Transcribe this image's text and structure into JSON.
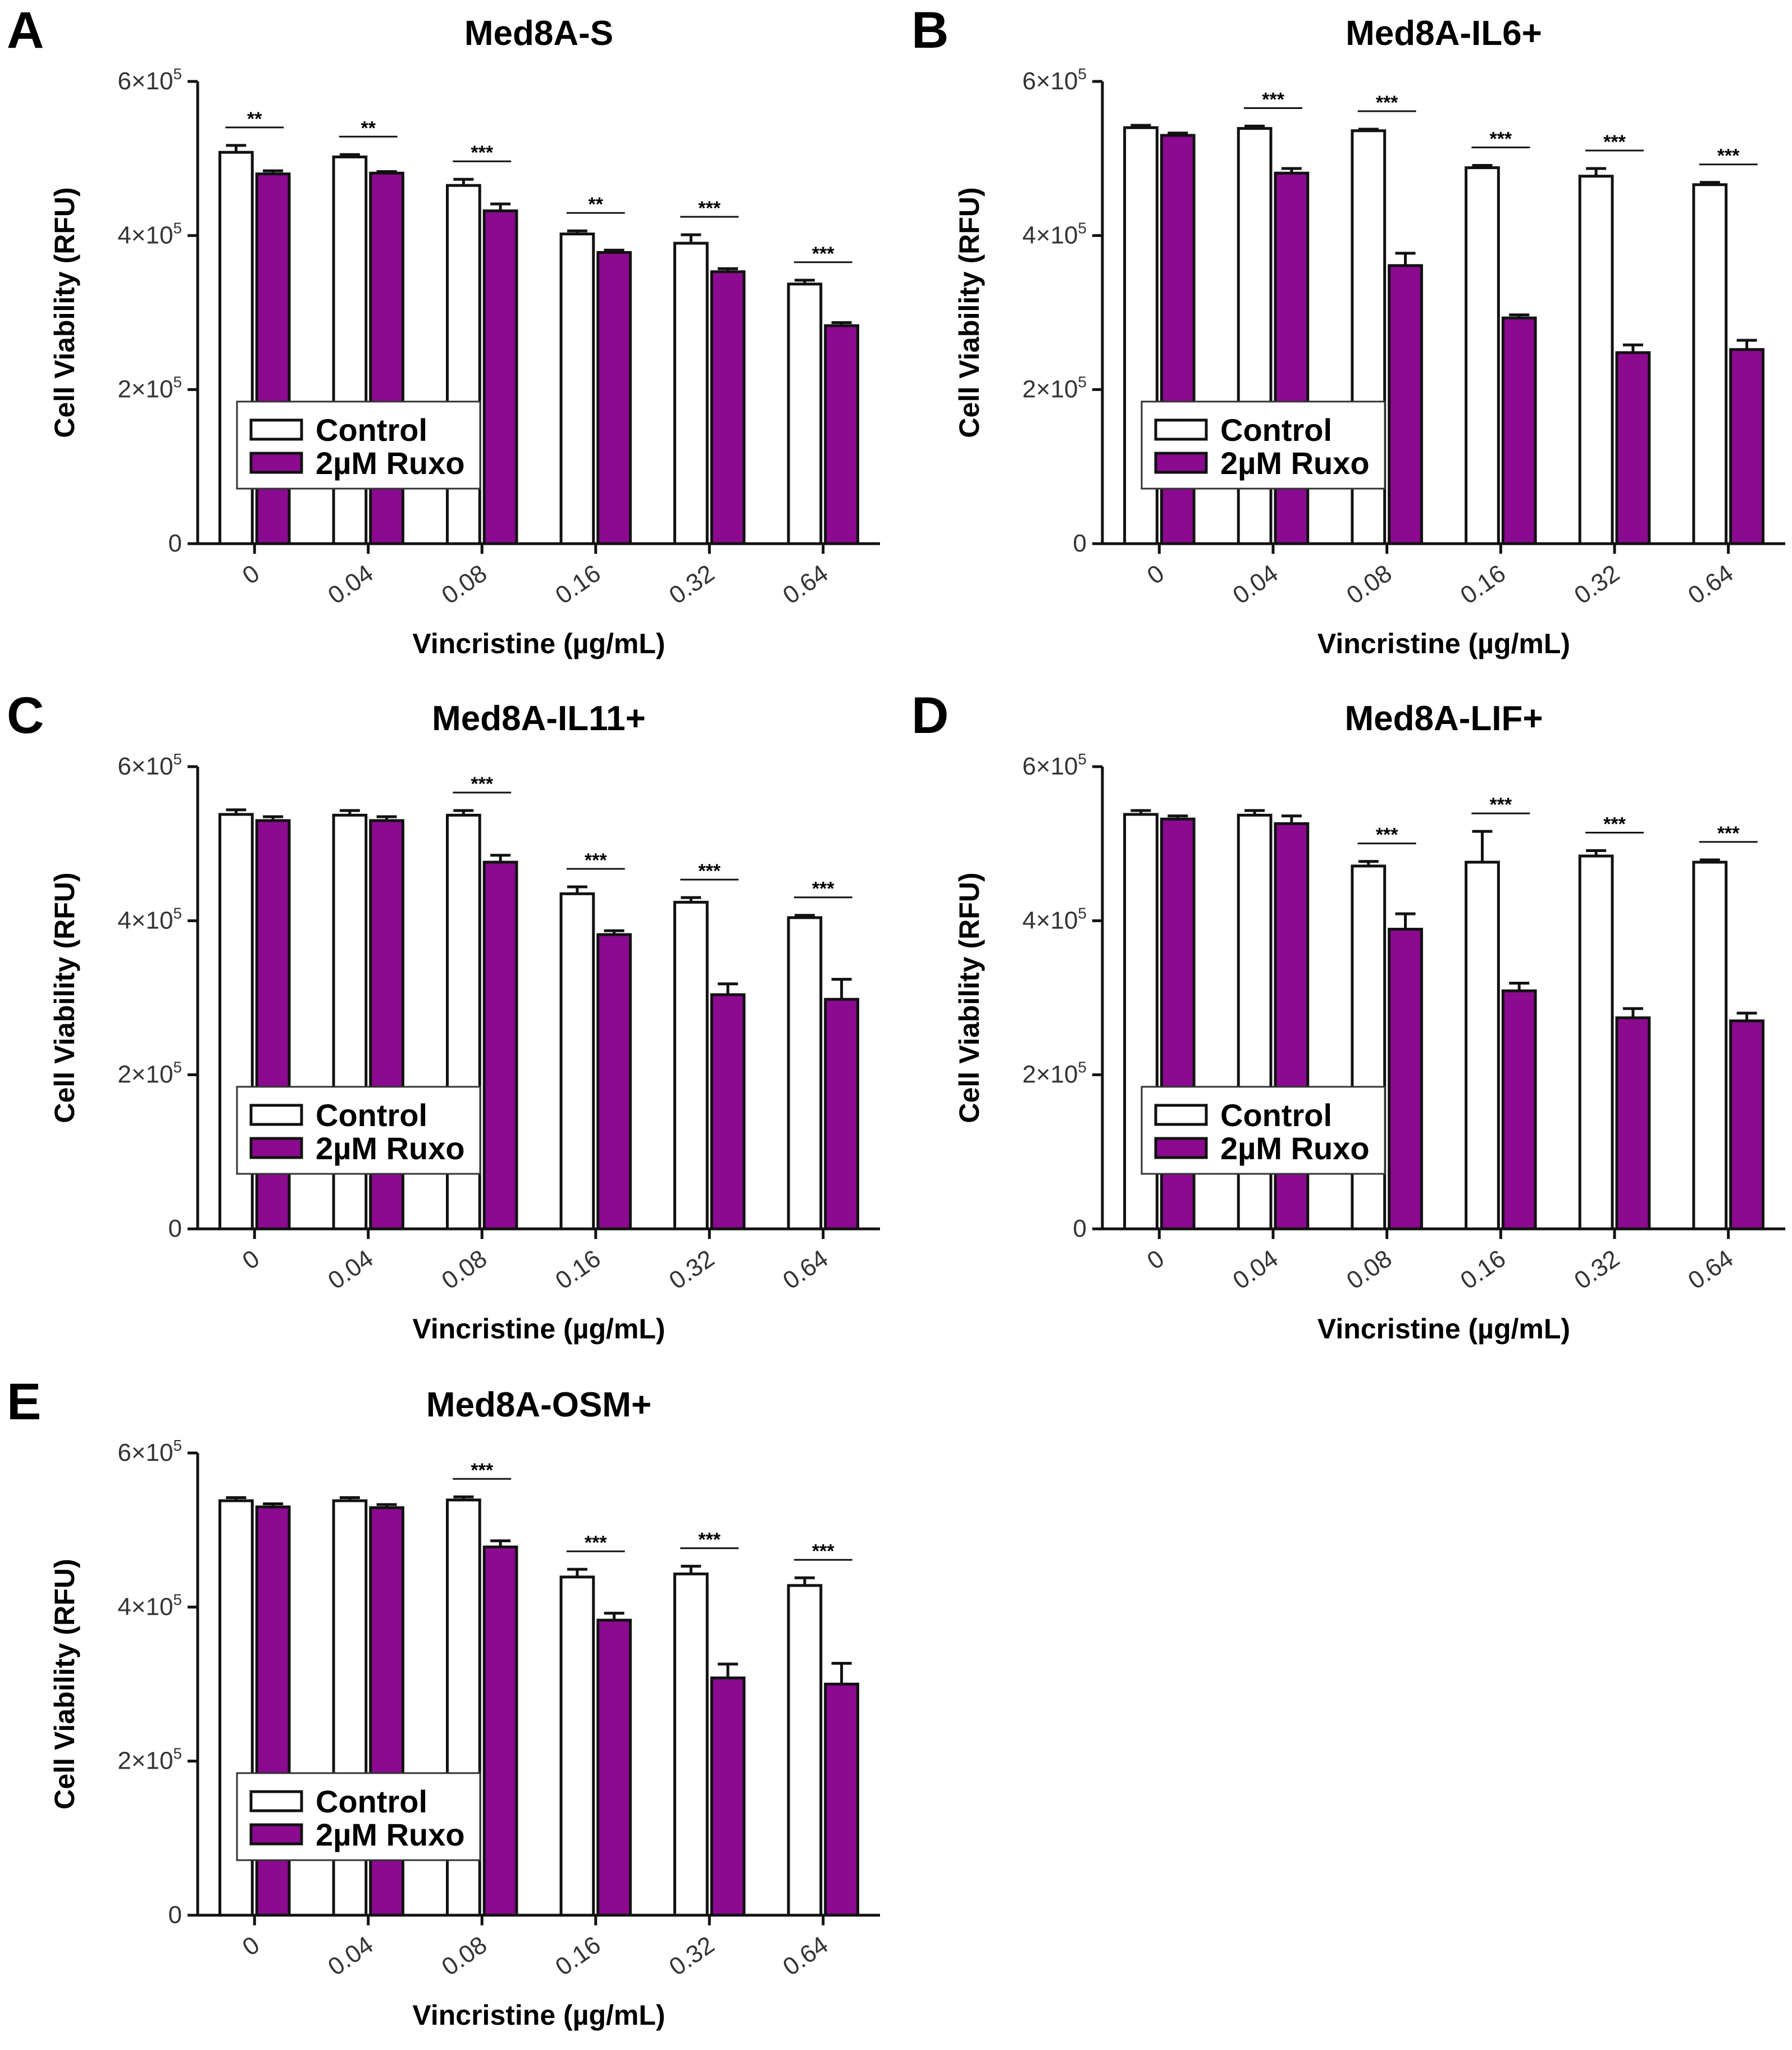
{
  "figure": {
    "legend": {
      "control_label": "Control",
      "ruxo_label": "2µM Ruxo"
    },
    "colors": {
      "control_fill": "#ffffff",
      "ruxo_fill": "#8b0a8f",
      "axis": "#111111"
    }
  },
  "chart_data": [
    {
      "panel": "A",
      "type": "bar",
      "title": "Med8A-S",
      "xlabel": "Vincristine (µg/mL)",
      "ylabel": "Cell Viability (RFU)",
      "ylim": [
        0,
        600000
      ],
      "yticks": [
        {
          "value": 0,
          "mantissa": "0",
          "exp": ""
        },
        {
          "value": 200000,
          "mantissa": "2×10",
          "exp": "5"
        },
        {
          "value": 400000,
          "mantissa": "4×10",
          "exp": "5"
        },
        {
          "value": 600000,
          "mantissa": "6×10",
          "exp": "5"
        }
      ],
      "categories": [
        "0",
        "0.04",
        "0.08",
        "0.16",
        "0.32",
        "0.64"
      ],
      "series": [
        {
          "name": "Control",
          "values": [
            508000,
            502000,
            465000,
            402000,
            390000,
            337000
          ],
          "errors": [
            9000,
            3000,
            8000,
            4000,
            11000,
            5000
          ]
        },
        {
          "name": "2µM Ruxo",
          "values": [
            480000,
            481000,
            432000,
            378000,
            353000,
            283000
          ],
          "errors": [
            4000,
            2000,
            9000,
            3000,
            4000,
            4000
          ]
        }
      ],
      "significance": [
        "**",
        "**",
        "***",
        "**",
        "***",
        "***"
      ],
      "legend_position": "bottom-left"
    },
    {
      "panel": "B",
      "type": "bar",
      "title": "Med8A-IL6+",
      "xlabel": "Vincristine (µg/mL)",
      "ylabel": "Cell Viability (RFU)",
      "ylim": [
        0,
        600000
      ],
      "yticks": [
        {
          "value": 0,
          "mantissa": "0",
          "exp": ""
        },
        {
          "value": 200000,
          "mantissa": "2×10",
          "exp": "5"
        },
        {
          "value": 400000,
          "mantissa": "4×10",
          "exp": "5"
        },
        {
          "value": 600000,
          "mantissa": "6×10",
          "exp": "5"
        }
      ],
      "categories": [
        "0",
        "0.04",
        "0.08",
        "0.16",
        "0.32",
        "0.64"
      ],
      "series": [
        {
          "name": "Control",
          "values": [
            540000,
            539000,
            536000,
            488000,
            477000,
            466000
          ],
          "errors": [
            3000,
            3000,
            2000,
            3000,
            10000,
            3000
          ]
        },
        {
          "name": "2µM Ruxo",
          "values": [
            530000,
            481000,
            361000,
            293000,
            248000,
            252000
          ],
          "errors": [
            3000,
            6000,
            16000,
            4000,
            10000,
            12000
          ]
        }
      ],
      "significance": [
        "",
        "***",
        "***",
        "***",
        "***",
        "***"
      ],
      "legend_position": "bottom-left"
    },
    {
      "panel": "C",
      "type": "bar",
      "title": "Med8A-IL11+",
      "xlabel": "Vincristine (µg/mL)",
      "ylabel": "Cell Viability (RFU)",
      "ylim": [
        0,
        600000
      ],
      "yticks": [
        {
          "value": 0,
          "mantissa": "0",
          "exp": ""
        },
        {
          "value": 200000,
          "mantissa": "2×10",
          "exp": "5"
        },
        {
          "value": 400000,
          "mantissa": "4×10",
          "exp": "5"
        },
        {
          "value": 600000,
          "mantissa": "6×10",
          "exp": "5"
        }
      ],
      "categories": [
        "0",
        "0.04",
        "0.08",
        "0.16",
        "0.32",
        "0.64"
      ],
      "series": [
        {
          "name": "Control",
          "values": [
            538000,
            537000,
            537000,
            435000,
            424000,
            404000
          ],
          "errors": [
            6000,
            6000,
            6000,
            9000,
            6000,
            3000
          ]
        },
        {
          "name": "2µM Ruxo",
          "values": [
            530000,
            530000,
            476000,
            382000,
            304000,
            298000
          ],
          "errors": [
            5000,
            5000,
            9000,
            5000,
            14000,
            26000
          ]
        }
      ],
      "significance": [
        "",
        "",
        "***",
        "***",
        "***",
        "***"
      ],
      "legend_position": "bottom-left"
    },
    {
      "panel": "D",
      "type": "bar",
      "title": "Med8A-LIF+",
      "xlabel": "Vincristine (µg/mL)",
      "ylabel": "Cell Viability (RFU)",
      "ylim": [
        0,
        600000
      ],
      "yticks": [
        {
          "value": 0,
          "mantissa": "0",
          "exp": ""
        },
        {
          "value": 200000,
          "mantissa": "2×10",
          "exp": "5"
        },
        {
          "value": 400000,
          "mantissa": "4×10",
          "exp": "5"
        },
        {
          "value": 600000,
          "mantissa": "6×10",
          "exp": "5"
        }
      ],
      "categories": [
        "0",
        "0.04",
        "0.08",
        "0.16",
        "0.32",
        "0.64"
      ],
      "series": [
        {
          "name": "Control",
          "values": [
            538000,
            537000,
            471000,
            476000,
            484000,
            476000
          ],
          "errors": [
            5000,
            6000,
            6000,
            40000,
            7000,
            3000
          ]
        },
        {
          "name": "2µM Ruxo",
          "values": [
            532000,
            526000,
            389000,
            309000,
            274000,
            270000
          ],
          "errors": [
            4000,
            10000,
            20000,
            10000,
            12000,
            10000
          ]
        }
      ],
      "significance": [
        "",
        "",
        "***",
        "***",
        "***",
        "***"
      ],
      "legend_position": "bottom-left"
    },
    {
      "panel": "E",
      "type": "bar",
      "title": "Med8A-OSM+",
      "xlabel": "Vincristine (µg/mL)",
      "ylabel": "Cell Viability (RFU)",
      "ylim": [
        0,
        600000
      ],
      "yticks": [
        {
          "value": 0,
          "mantissa": "0",
          "exp": ""
        },
        {
          "value": 200000,
          "mantissa": "2×10",
          "exp": "5"
        },
        {
          "value": 400000,
          "mantissa": "4×10",
          "exp": "5"
        },
        {
          "value": 600000,
          "mantissa": "6×10",
          "exp": "5"
        }
      ],
      "categories": [
        "0",
        "0.04",
        "0.08",
        "0.16",
        "0.32",
        "0.64"
      ],
      "series": [
        {
          "name": "Control",
          "values": [
            538000,
            538000,
            539000,
            439000,
            443000,
            428000
          ],
          "errors": [
            4000,
            4000,
            4000,
            10000,
            10000,
            10000
          ]
        },
        {
          "name": "2µM Ruxo",
          "values": [
            530000,
            529000,
            478000,
            383000,
            308000,
            300000
          ],
          "errors": [
            4000,
            4000,
            8000,
            9000,
            18000,
            27000
          ]
        }
      ],
      "significance": [
        "",
        "",
        "***",
        "***",
        "***",
        "***"
      ],
      "legend_position": "bottom-left"
    }
  ]
}
